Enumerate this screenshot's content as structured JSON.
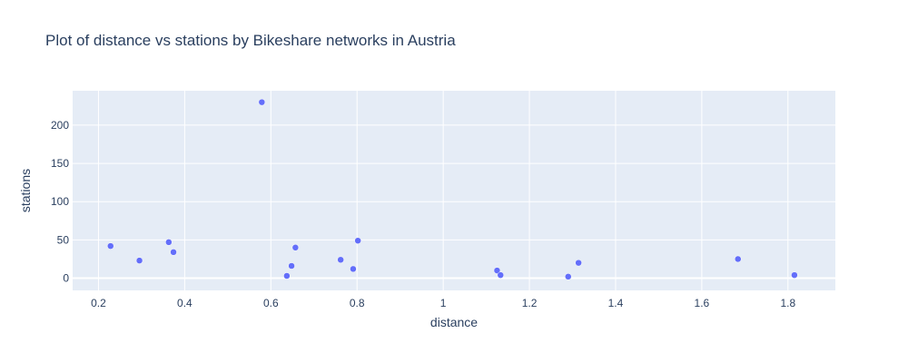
{
  "chart_data": {
    "type": "scatter",
    "title": "Plot of distance vs stations by Bikeshare networks in Austria",
    "xlabel": "distance",
    "ylabel": "stations",
    "xlim": [
      0.14,
      1.91
    ],
    "ylim": [
      -16,
      245
    ],
    "x_ticks": [
      0.2,
      0.4,
      0.6,
      0.8,
      1,
      1.2,
      1.4,
      1.6,
      1.8
    ],
    "x_tick_labels": [
      "0.2",
      "0.4",
      "0.6",
      "0.8",
      "1",
      "1.2",
      "1.4",
      "1.6",
      "1.8"
    ],
    "y_ticks": [
      0,
      50,
      100,
      150,
      200
    ],
    "y_tick_labels": [
      "0",
      "50",
      "100",
      "150",
      "200"
    ],
    "grid": true,
    "legend": "none",
    "marker_color": "#636efa",
    "plot_background": "#e5ecf6",
    "points": [
      {
        "x": 0.228,
        "y": 42
      },
      {
        "x": 0.295,
        "y": 23
      },
      {
        "x": 0.363,
        "y": 47
      },
      {
        "x": 0.374,
        "y": 34
      },
      {
        "x": 0.579,
        "y": 230
      },
      {
        "x": 0.637,
        "y": 3
      },
      {
        "x": 0.648,
        "y": 16
      },
      {
        "x": 0.657,
        "y": 40
      },
      {
        "x": 0.762,
        "y": 24
      },
      {
        "x": 0.791,
        "y": 12
      },
      {
        "x": 0.802,
        "y": 49
      },
      {
        "x": 1.125,
        "y": 10
      },
      {
        "x": 1.133,
        "y": 4
      },
      {
        "x": 1.29,
        "y": 2
      },
      {
        "x": 1.314,
        "y": 20
      },
      {
        "x": 1.684,
        "y": 25
      },
      {
        "x": 1.815,
        "y": 4
      }
    ]
  }
}
